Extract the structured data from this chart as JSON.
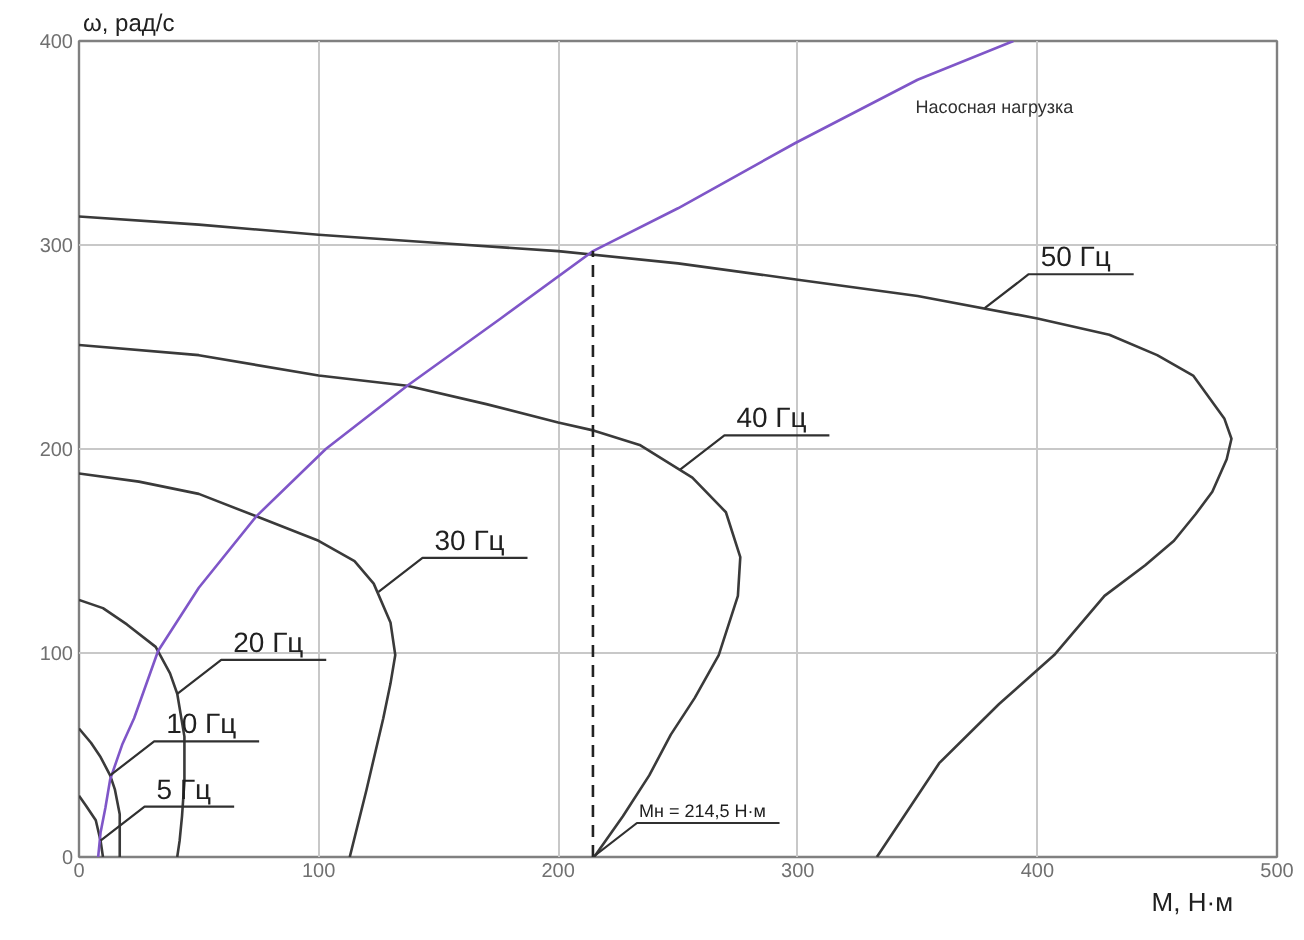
{
  "chart_data": {
    "type": "line",
    "xlabel": "M, Н·м",
    "ylabel": "ω, рад/с",
    "xlim": [
      0,
      500
    ],
    "ylim": [
      0,
      400
    ],
    "xticks": [
      0,
      100,
      200,
      300,
      400,
      500
    ],
    "yticks": [
      0,
      100,
      200,
      300,
      400
    ],
    "grid": true,
    "series": [
      {
        "color": "#3a3a3a",
        "x": [
          0,
          50,
          100,
          150,
          200,
          250,
          300,
          350,
          400,
          430,
          450,
          465,
          478,
          481,
          479,
          473,
          466,
          457,
          445,
          428,
          407,
          384,
          359,
          333
        ],
        "values": [
          314,
          310,
          305,
          301,
          297,
          291,
          283,
          275,
          264,
          256,
          246,
          236,
          215,
          205,
          195,
          179,
          168,
          155,
          143,
          128,
          99,
          75,
          46,
          0
        ]
      },
      {
        "color": "#3a3a3a",
        "x": [
          0,
          50,
          100,
          137,
          170,
          200,
          215,
          234,
          256,
          270,
          276,
          275,
          267,
          257,
          247,
          238,
          227,
          215
        ],
        "values": [
          251,
          246,
          236,
          231,
          222,
          213,
          209,
          202,
          186,
          169,
          147,
          128,
          99,
          78,
          60,
          40,
          20,
          0
        ]
      },
      {
        "color": "#3a3a3a",
        "x": [
          0,
          25,
          50,
          74,
          100,
          115,
          123,
          130,
          132,
          130,
          127,
          120,
          113
        ],
        "values": [
          188,
          184,
          178,
          167,
          155,
          145,
          134,
          115,
          99,
          85,
          68,
          33,
          0
        ]
      },
      {
        "color": "#3a3a3a",
        "x": [
          0,
          10,
          20,
          32,
          38,
          41,
          44,
          44,
          43,
          42,
          41
        ],
        "values": [
          126,
          122,
          114,
          103,
          90,
          80,
          59,
          37,
          20,
          8,
          0
        ]
      },
      {
        "color": "#3a3a3a",
        "x": [
          0,
          5,
          9,
          13,
          15,
          17,
          17,
          17
        ],
        "values": [
          63,
          56,
          49,
          40,
          33,
          21,
          10,
          0
        ]
      },
      {
        "color": "#3a3a3a",
        "x": [
          0,
          3,
          7,
          9,
          10
        ],
        "values": [
          30,
          25,
          18,
          8,
          0
        ]
      },
      {
        "name": "Насосная нагрузка",
        "color": "#7f56c8",
        "x": [
          8,
          9,
          11,
          13,
          18,
          23,
          33,
          50,
          74,
          103,
          137,
          176,
          214.5,
          250,
          299,
          350,
          390
        ],
        "values": [
          0,
          12,
          24,
          38,
          55,
          68,
          101,
          132,
          167,
          200,
          231,
          264,
          297,
          318,
          350,
          381,
          400
        ]
      },
      {
        "color": "#222222",
        "line_style": "dashed",
        "x": [
          214.5,
          214.5
        ],
        "values": [
          0,
          297
        ]
      }
    ],
    "annotations": [
      {
        "text": "50 Гц",
        "x": 378,
        "y": 269
      },
      {
        "text": "40 Гц",
        "x": 251,
        "y": 190
      },
      {
        "text": "30 Гц",
        "x": 125,
        "y": 130
      },
      {
        "text": "20 Гц",
        "x": 41,
        "y": 80
      },
      {
        "text": "10 Гц",
        "x": 13,
        "y": 40
      },
      {
        "text": "5 Гц",
        "x": 9,
        "y": 8
      },
      {
        "text": "Мн = 214,5 Н·м",
        "x": 214.5,
        "y": 0
      }
    ]
  }
}
